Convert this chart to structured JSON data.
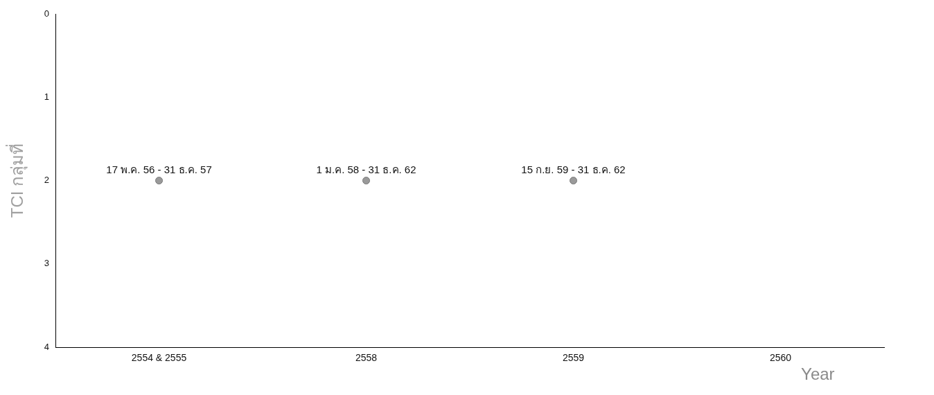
{
  "chart_data": {
    "type": "scatter",
    "xlabel": "Year",
    "ylabel": "TCI กลุ่มที่",
    "categories": [
      "2554 & 2555",
      "2558",
      "2559",
      "2560"
    ],
    "series": [
      {
        "color": "#9a9a9a",
        "values": [
          2,
          2,
          2,
          null
        ]
      }
    ],
    "ylim": [
      4,
      0
    ],
    "yticks": [
      0,
      1,
      2,
      3,
      4
    ],
    "grid": false,
    "legend": false,
    "marker": "circle",
    "annotations": [
      {
        "text": "17 พ.ค. 56 - 31 ธ.ค. 57",
        "x": "2554 & 2555",
        "y": 2
      },
      {
        "text": "1 ม.ค. 58 - 31 ธ.ค. 62",
        "x": "2558",
        "y": 2
      },
      {
        "text": "15 ก.ย. 59 - 31 ธ.ค. 62",
        "x": "2559",
        "y": 2
      }
    ]
  }
}
